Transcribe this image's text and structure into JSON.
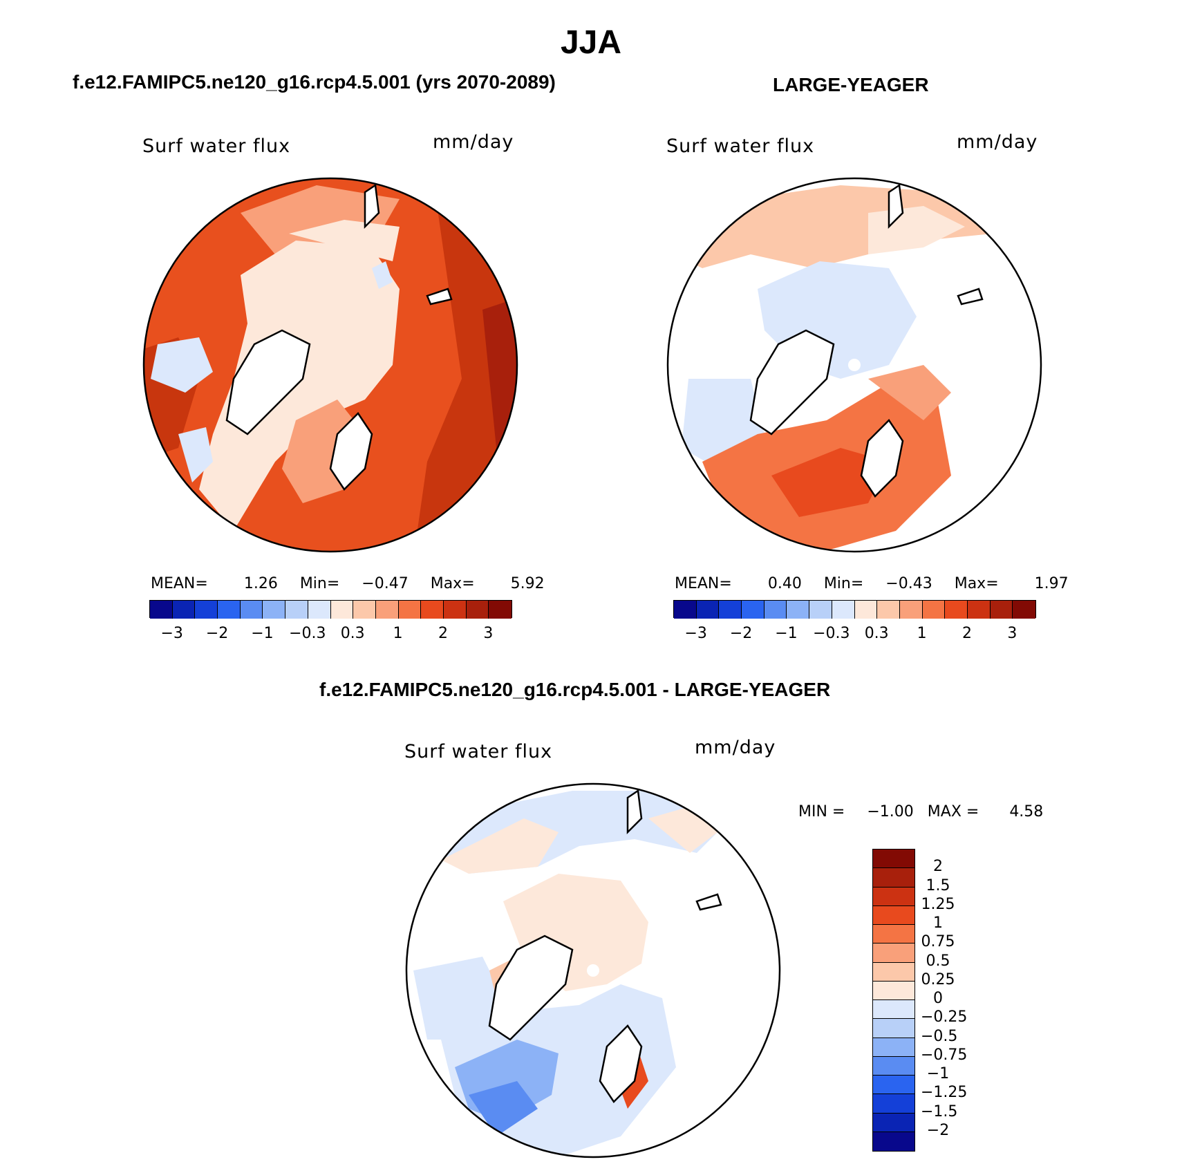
{
  "title": "JJA",
  "panels": [
    {
      "id": "model",
      "header": "f.e12.FAMIPC5.ne120_g16.rcp4.5.001 (yrs 2070-2089)",
      "variable": "Surf water flux",
      "units": "mm/day",
      "stats": {
        "mean_label": "MEAN=",
        "mean": "1.26",
        "min_label": "Min=",
        "min": "−0.47",
        "max_label": "Max=",
        "max": "5.92"
      }
    },
    {
      "id": "obs",
      "header": "LARGE-YEAGER",
      "variable": "Surf water flux",
      "units": "mm/day",
      "stats": {
        "mean_label": "MEAN=",
        "mean": "0.40",
        "min_label": "Min=",
        "min": "−0.43",
        "max_label": "Max=",
        "max": "1.97"
      }
    },
    {
      "id": "diff",
      "header": "f.e12.FAMIPC5.ne120_g16.rcp4.5.001 - LARGE-YEAGER",
      "variable": "Surf water flux",
      "units": "mm/day",
      "stats": {
        "min_label": "MIN =",
        "min": "−1.00",
        "max_label": "MAX =",
        "max": "4.58"
      }
    }
  ],
  "colorbar_horizontal": {
    "colors": [
      "#08088c",
      "#0a24b4",
      "#1440d8",
      "#2a64f0",
      "#5a8cf2",
      "#8cb2f6",
      "#b8d0f8",
      "#dce8fc",
      "#fde8da",
      "#fcc8aa",
      "#f9a07a",
      "#f47444",
      "#e84a1e",
      "#cc3212",
      "#a8200c",
      "#820a04"
    ],
    "tick_labels": [
      "−3",
      "−2",
      "−1",
      "−0.3",
      "0.3",
      "1",
      "2",
      "3"
    ]
  },
  "colorbar_vertical": {
    "colors": [
      "#820a04",
      "#a8200c",
      "#cc3212",
      "#e84a1e",
      "#f47444",
      "#f9a07a",
      "#fcc8aa",
      "#fde8da",
      "#dce8fc",
      "#b8d0f8",
      "#8cb2f6",
      "#5a8cf2",
      "#2a64f0",
      "#1440d8",
      "#0a24b4",
      "#08088c"
    ],
    "tick_labels": [
      "2",
      "1.5",
      "1.25",
      "1",
      "0.75",
      "0.5",
      "0.25",
      "0",
      "−0.25",
      "−0.5",
      "−0.75",
      "−1",
      "−1.25",
      "−1.5",
      "−2"
    ]
  },
  "map_colors": {
    "land_outline": "#000000",
    "model_base": "#e8501e",
    "model_dark": "#c8360e",
    "model_darker": "#a8200c",
    "model_light": "#fde8da",
    "model_mid": "#f9a07a",
    "model_blue": "#dce8fc",
    "obs_base": "#ffffff",
    "obs_pale": "#fde8da",
    "obs_light": "#fcc8aa",
    "obs_mid": "#f9a07a",
    "obs_strong": "#f47444",
    "obs_blue": "#dce8fc",
    "diff_pale": "#fde8da",
    "diff_lightblue": "#dce8fc",
    "diff_blue": "#8cb2f6",
    "diff_bluer": "#5a8cf2",
    "diff_red": "#e84a1e",
    "diff_light": "#fcc8aa"
  }
}
